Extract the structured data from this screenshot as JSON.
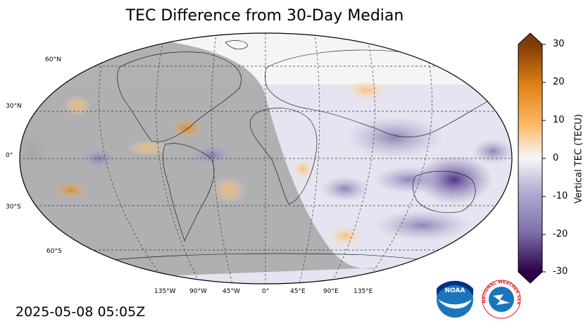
{
  "title": "TEC Difference from 30-Day Median",
  "timestamp": "2025-05-08 05:05Z",
  "colorbar": {
    "label": "Vertical TEC (TECU)",
    "ticks": [
      "30",
      "20",
      "10",
      "0",
      "-10",
      "-20",
      "-30"
    ],
    "min": -30,
    "max": 30,
    "colors": {
      "max": "#7f3b08",
      "orange": "#e08214",
      "light_orange": "#fdb863",
      "neutral": "#f7f7f7",
      "light_purple": "#b2abd2",
      "purple": "#8073ac",
      "min": "#2d004b"
    }
  },
  "map": {
    "lat_labels": [
      "60°N",
      "30°N",
      "0°",
      "30°S",
      "60°S"
    ],
    "lon_labels": [
      "135°W",
      "90°W",
      "45°W",
      "0°",
      "45°E",
      "90°E",
      "135°E"
    ],
    "night_shade_color": "#a9a9a9"
  },
  "logos": {
    "noaa_text": "NOAA",
    "nws_text": "NATIONAL WEATHER SERVICE"
  }
}
